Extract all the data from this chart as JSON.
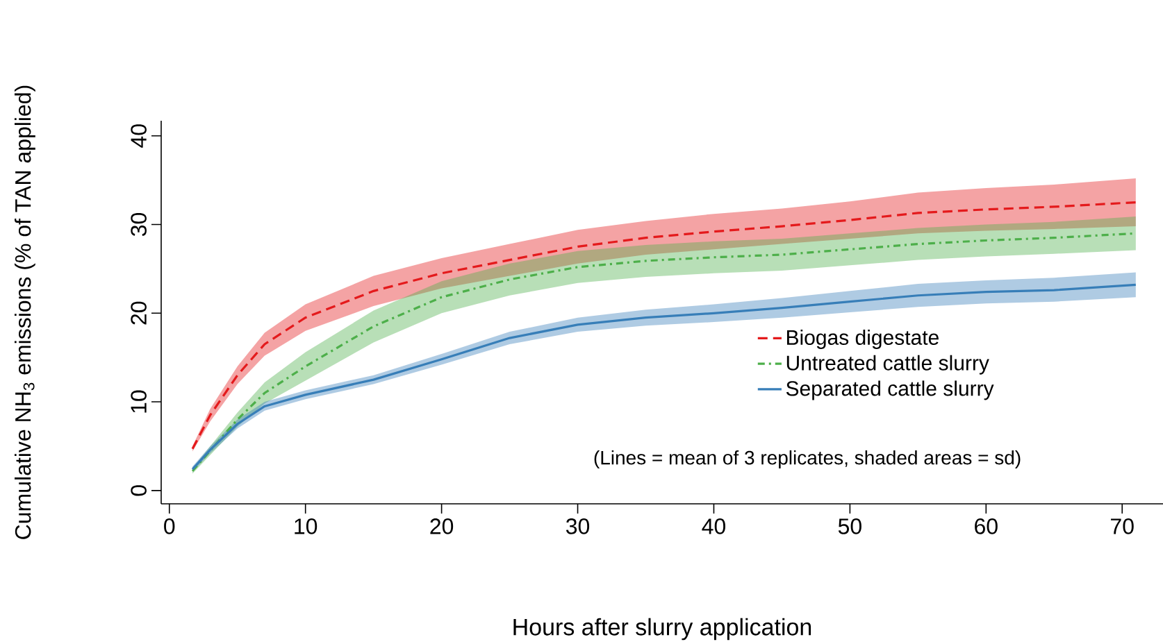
{
  "chart_data": {
    "type": "line",
    "xlabel": "Hours after slurry application",
    "ylabel": "Cumulative NH$_{3}$ emissions (% of TAN applied)",
    "annotations": [
      "(Lines = mean of 3 replicates, shaded areas = sd)"
    ],
    "x": [
      1.7,
      3,
      5,
      7,
      10,
      15,
      20,
      25,
      30,
      35,
      40,
      45,
      50,
      55,
      60,
      65,
      71
    ],
    "series": [
      {
        "name": "Biogas digestate",
        "color": "#e41a1c",
        "line_style": "dashed",
        "values": [
          4.7,
          8.5,
          13,
          16.5,
          19.5,
          22.5,
          24.5,
          26,
          27.5,
          28.5,
          29.2,
          29.8,
          30.5,
          31.3,
          31.7,
          32,
          32.5
        ],
        "lower": [
          4.4,
          7.8,
          12,
          15.2,
          18,
          20.8,
          22.8,
          24.2,
          25.6,
          26.6,
          27.2,
          27.8,
          28.4,
          29,
          29.3,
          29.5,
          29.8
        ],
        "upper": [
          5,
          9.2,
          14,
          17.8,
          21,
          24.2,
          26.2,
          27.8,
          29.4,
          30.4,
          31.2,
          31.8,
          32.6,
          33.6,
          34.1,
          34.5,
          35.2
        ]
      },
      {
        "name": "Untreated cattle slurry",
        "color": "#4daf4a",
        "line_style": "dashdot",
        "values": [
          2.2,
          4.5,
          8,
          11,
          14,
          18.5,
          21.8,
          23.8,
          25.2,
          25.9,
          26.3,
          26.6,
          27.2,
          27.8,
          28.2,
          28.5,
          29
        ],
        "lower": [
          1.9,
          4,
          7.2,
          9.8,
          12.4,
          16.7,
          20,
          22,
          23.4,
          24.1,
          24.5,
          24.8,
          25.4,
          26,
          26.4,
          26.7,
          27.1
        ],
        "upper": [
          2.5,
          5,
          8.8,
          12.2,
          15.6,
          20.3,
          23.6,
          25.6,
          27,
          27.7,
          28.1,
          28.4,
          29,
          29.6,
          30,
          30.3,
          30.9
        ]
      },
      {
        "name": "Separated cattle slurry",
        "color": "#377eb8",
        "line_style": "solid",
        "values": [
          2.4,
          4.6,
          7.5,
          9.5,
          10.8,
          12.5,
          14.8,
          17.2,
          18.7,
          19.5,
          20,
          20.6,
          21.3,
          22,
          22.4,
          22.6,
          23.2
        ],
        "lower": [
          2.1,
          4.2,
          7,
          9,
          10.3,
          12,
          14.2,
          16.5,
          17.9,
          18.6,
          19,
          19.5,
          20.1,
          20.7,
          21.1,
          21.3,
          21.8
        ],
        "upper": [
          2.7,
          5,
          8,
          10,
          11.3,
          13,
          15.4,
          17.9,
          19.5,
          20.4,
          21,
          21.7,
          22.5,
          23.3,
          23.7,
          24,
          24.6
        ]
      }
    ],
    "xlim": [
      -0.6,
      73
    ],
    "ylim": [
      -1.5,
      41.7
    ],
    "xticks": [
      0,
      10,
      20,
      30,
      40,
      50,
      60,
      70
    ],
    "yticks": [
      0,
      10,
      20,
      30,
      40
    ],
    "grid": false,
    "legend": "right",
    "marker": "none"
  }
}
